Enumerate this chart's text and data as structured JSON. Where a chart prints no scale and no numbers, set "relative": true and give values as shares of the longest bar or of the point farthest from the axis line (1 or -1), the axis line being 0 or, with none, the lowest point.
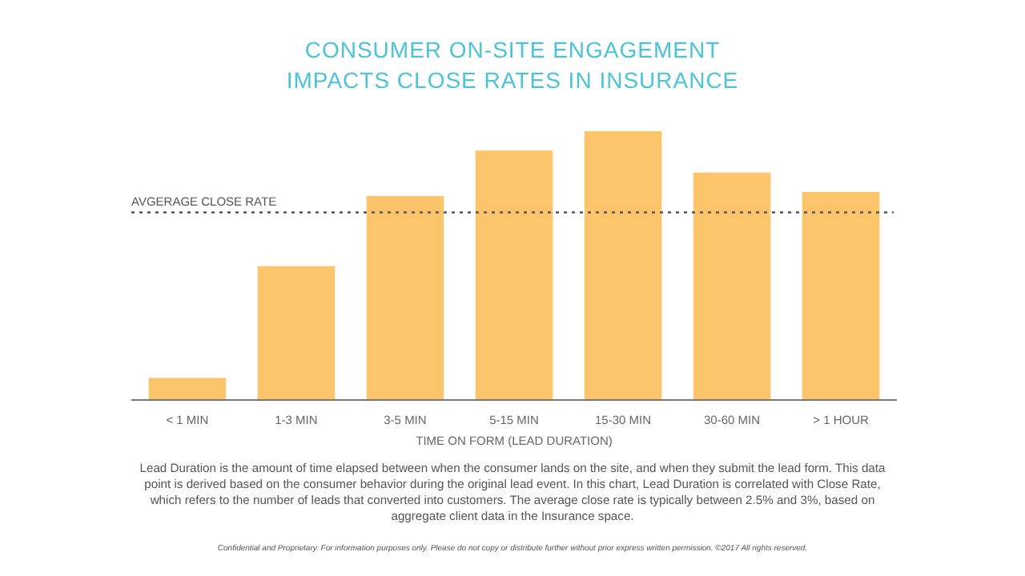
{
  "chart_data": {
    "type": "bar",
    "title": "CONSUMER ON-SITE ENGAGEMENT\nIMPACTS CLOSE RATES IN INSURANCE",
    "xlabel": "TIME ON FORM (LEAD DURATION)",
    "relative": true,
    "categories": [
      "< 1 MIN",
      "1-3 MIN",
      "3-5 MIN",
      "5-15 MIN",
      "15-30 MIN",
      "30-60 MIN",
      "> 1 HOUR"
    ],
    "values": [
      0.082,
      0.498,
      0.759,
      0.928,
      1,
      0.846,
      0.774
    ],
    "color": "#fcc46b",
    "ref_lines": [
      {
        "axis": "y",
        "value": 0.698,
        "label": "AVGERAGE CLOSE RATE",
        "color": "#555555",
        "line_style": "dotted"
      }
    ],
    "annotations": [
      "Lead Duration is the amount of time elapsed between when the consumer lands on the site, and when they submit the lead form. This data point is derived based on the consumer behavior during the original lead event. In this chart, Lead Duration is correlated with Close Rate, which refers to the number of leads that converted into customers. The average close rate is typically between 2.5% and 3%, based on aggregate client data in the Insurance space.",
      "Confidential and Proprietary. For information purposes only. Please do not copy or distribute further without prior express written permission. ©2017 All rights reserved."
    ]
  }
}
